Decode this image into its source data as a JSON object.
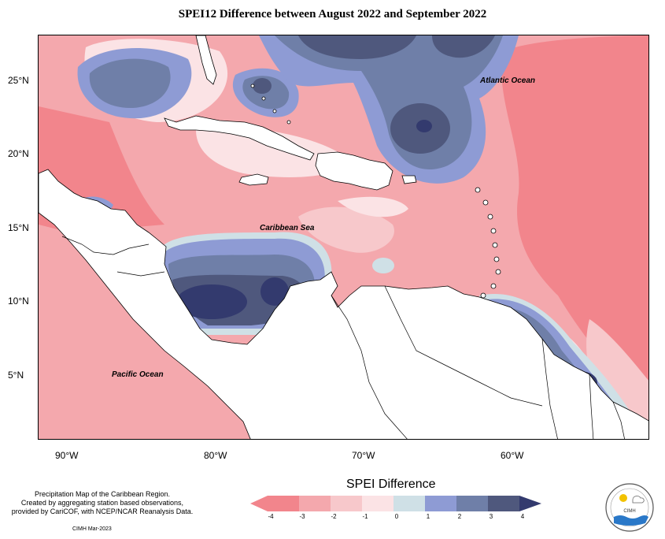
{
  "title": "SPEI12 Difference between August 2022 and September 2022",
  "lat_labels": [
    "25°N",
    "20°N",
    "15°N",
    "10°N",
    "5°N"
  ],
  "lon_labels": [
    "90°W",
    "80°W",
    "70°W",
    "60°W"
  ],
  "ocean_labels": {
    "atlantic": "Atlantic Ocean",
    "caribbean": "Caribbean Sea",
    "pacific": "Pacific Ocean"
  },
  "caption": {
    "line1": "Precipitation Map of the Caribbean Region.",
    "line2": "Created by aggregating station based observations,",
    "line3": "provided by CariCOF, with NCEP/NCAR Reanalysis Data."
  },
  "credit": "CIMH Mar-2023",
  "legend": {
    "title": "SPEI Difference",
    "ticks": [
      "-4",
      "-3",
      "-2",
      "-1",
      "0",
      "1",
      "2",
      "3",
      "4"
    ],
    "colors": [
      "#f2858c",
      "#f4a8ad",
      "#f7c8cb",
      "#fbe3e5",
      "#cfe0e6",
      "#8e9bd4",
      "#6f7fa8",
      "#4f587d",
      "#333a6e"
    ]
  },
  "logo": {
    "text": "CIMH"
  }
}
